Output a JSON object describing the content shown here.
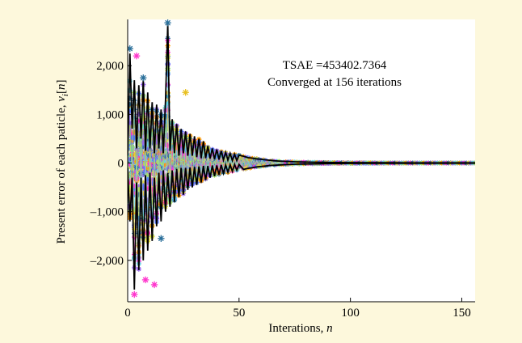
{
  "chart_data": {
    "type": "scatter",
    "xlabel": "Interations, n",
    "xlabel_main": "Interations, ",
    "xlabel_var": "n",
    "ylabel_main": "Present error of each paticle, ",
    "ylabel_var": "v",
    "ylabel_sub": "i",
    "ylabel_bracket_open": "[",
    "ylabel_index": "n",
    "ylabel_bracket_close": "]",
    "xlim": [
      0,
      156
    ],
    "ylim": [
      -2850,
      2950
    ],
    "x_ticks": [
      0,
      50,
      100,
      150
    ],
    "x_tick_labels": [
      "0",
      "50",
      "100",
      "150"
    ],
    "y_ticks": [
      -2000,
      -1000,
      0,
      1000,
      2000
    ],
    "y_tick_labels": [
      "–2,000",
      "–1,000",
      "0",
      "1,000",
      "2,000"
    ],
    "grid": false,
    "annotations": [
      "TSAE =453402.7364",
      "Converged at 156 iterations"
    ],
    "iterations": 156,
    "highlight_points": [
      {
        "x": 1,
        "y": 2350,
        "color": "#2a6f9a"
      },
      {
        "x": 4,
        "y": 2200,
        "color": "#ff33cc"
      },
      {
        "x": 7,
        "y": 1750,
        "color": "#2a6f9a"
      },
      {
        "x": 18,
        "y": 2880,
        "color": "#2a6f9a"
      },
      {
        "x": 26,
        "y": 1450,
        "color": "#e8c020"
      },
      {
        "x": 3,
        "y": -2700,
        "color": "#ff33cc"
      },
      {
        "x": 8,
        "y": -2400,
        "color": "#ff33cc"
      },
      {
        "x": 12,
        "y": -2500,
        "color": "#ff33cc"
      },
      {
        "x": 15,
        "y": -1550,
        "color": "#2a6f9a"
      }
    ],
    "marker_colors": [
      "#ff33cc",
      "#2a6f9a",
      "#e8e040",
      "#9a66ee",
      "#66d8e8",
      "#a8e868",
      "#ff9900",
      "#5577ff"
    ],
    "upper_envelope": [
      [
        0,
        150
      ],
      [
        1,
        2250
      ],
      [
        2,
        700
      ],
      [
        3,
        1700
      ],
      [
        4,
        300
      ],
      [
        5,
        1600
      ],
      [
        6,
        500
      ],
      [
        7,
        1700
      ],
      [
        8,
        250
      ],
      [
        9,
        1450
      ],
      [
        10,
        300
      ],
      [
        11,
        1250
      ],
      [
        12,
        200
      ],
      [
        13,
        1200
      ],
      [
        14,
        300
      ],
      [
        15,
        1100
      ],
      [
        16,
        200
      ],
      [
        17,
        1300
      ],
      [
        18,
        2850
      ],
      [
        19,
        250
      ],
      [
        20,
        900
      ],
      [
        21,
        200
      ],
      [
        22,
        800
      ],
      [
        23,
        150
      ],
      [
        24,
        700
      ],
      [
        25,
        200
      ],
      [
        26,
        650
      ],
      [
        27,
        150
      ],
      [
        28,
        600
      ],
      [
        29,
        150
      ],
      [
        30,
        550
      ],
      [
        31,
        120
      ],
      [
        32,
        500
      ],
      [
        33,
        100
      ],
      [
        34,
        450
      ],
      [
        35,
        100
      ],
      [
        36,
        350
      ],
      [
        37,
        90
      ],
      [
        38,
        300
      ],
      [
        39,
        80
      ],
      [
        40,
        280
      ],
      [
        41,
        70
      ],
      [
        42,
        250
      ],
      [
        43,
        60
      ],
      [
        44,
        220
      ],
      [
        45,
        60
      ],
      [
        46,
        200
      ],
      [
        47,
        50
      ],
      [
        48,
        180
      ],
      [
        49,
        50
      ],
      [
        50,
        160
      ],
      [
        52,
        140
      ],
      [
        54,
        110
      ],
      [
        56,
        100
      ],
      [
        58,
        85
      ],
      [
        60,
        75
      ],
      [
        62,
        65
      ],
      [
        64,
        55
      ],
      [
        66,
        45
      ],
      [
        68,
        40
      ],
      [
        70,
        35
      ],
      [
        75,
        25
      ],
      [
        80,
        20
      ],
      [
        90,
        12
      ],
      [
        100,
        8
      ],
      [
        120,
        5
      ],
      [
        156,
        4
      ]
    ],
    "lower_envelope": [
      [
        0,
        -100
      ],
      [
        1,
        -1200
      ],
      [
        2,
        -300
      ],
      [
        3,
        -2600
      ],
      [
        4,
        -400
      ],
      [
        5,
        -2200
      ],
      [
        6,
        -300
      ],
      [
        7,
        -2000
      ],
      [
        8,
        -250
      ],
      [
        9,
        -1800
      ],
      [
        10,
        -200
      ],
      [
        11,
        -1600
      ],
      [
        12,
        -300
      ],
      [
        13,
        -1300
      ],
      [
        14,
        -200
      ],
      [
        15,
        -1200
      ],
      [
        16,
        -150
      ],
      [
        17,
        -1000
      ],
      [
        18,
        -200
      ],
      [
        19,
        -900
      ],
      [
        20,
        -150
      ],
      [
        21,
        -800
      ],
      [
        22,
        -120
      ],
      [
        23,
        -700
      ],
      [
        24,
        -100
      ],
      [
        25,
        -650
      ],
      [
        26,
        -100
      ],
      [
        27,
        -550
      ],
      [
        28,
        -90
      ],
      [
        29,
        -500
      ],
      [
        30,
        -80
      ],
      [
        31,
        -450
      ],
      [
        32,
        -70
      ],
      [
        33,
        -400
      ],
      [
        34,
        -60
      ],
      [
        35,
        -350
      ],
      [
        36,
        -60
      ],
      [
        37,
        -300
      ],
      [
        38,
        -50
      ],
      [
        39,
        -270
      ],
      [
        40,
        -50
      ],
      [
        41,
        -240
      ],
      [
        42,
        -40
      ],
      [
        43,
        -210
      ],
      [
        44,
        -40
      ],
      [
        45,
        -190
      ],
      [
        46,
        -35
      ],
      [
        47,
        -170
      ],
      [
        48,
        -30
      ],
      [
        49,
        -150
      ],
      [
        50,
        -30
      ],
      [
        52,
        -130
      ],
      [
        54,
        -110
      ],
      [
        56,
        -95
      ],
      [
        58,
        -80
      ],
      [
        60,
        -70
      ],
      [
        62,
        -60
      ],
      [
        64,
        -50
      ],
      [
        66,
        -45
      ],
      [
        68,
        -40
      ],
      [
        70,
        -35
      ],
      [
        75,
        -25
      ],
      [
        80,
        -20
      ],
      [
        90,
        -12
      ],
      [
        100,
        -8
      ],
      [
        120,
        -5
      ],
      [
        156,
        -4
      ]
    ]
  }
}
